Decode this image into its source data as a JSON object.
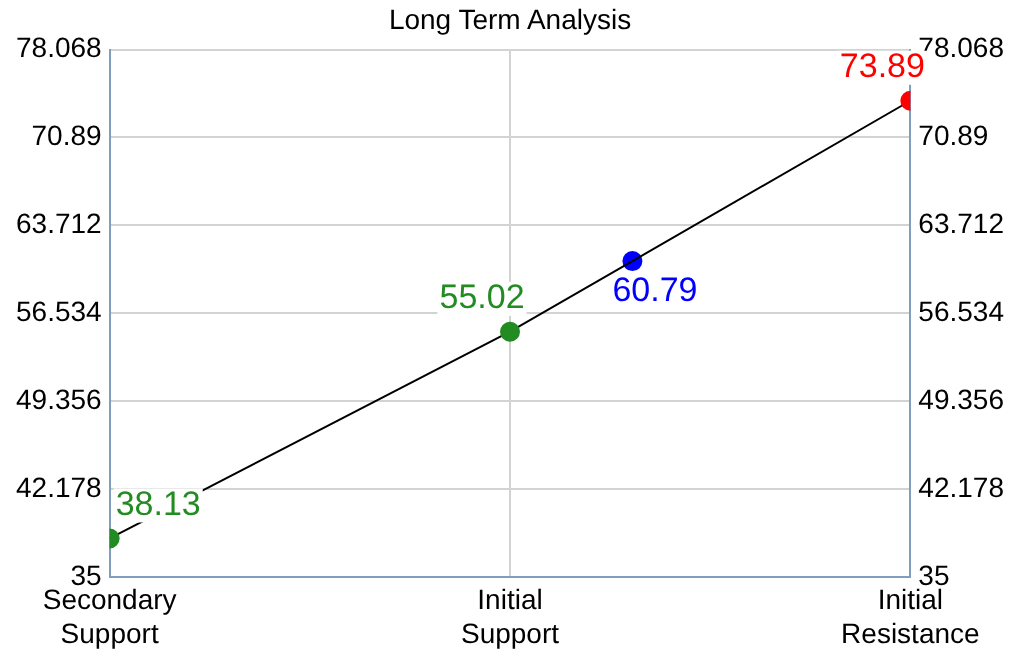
{
  "chart_data": {
    "type": "line",
    "title": "Long Term Analysis",
    "categories": [
      "Secondary Support",
      "Initial Support",
      "Initial Resistance"
    ],
    "series": [
      {
        "color": "#000000",
        "colors": [
          "#228b22",
          "#228b22",
          "#ff0000"
        ],
        "values": [
          38.13,
          55.02,
          73.89
        ]
      },
      {
        "type": "scatter",
        "color": "#0000ff",
        "values": [
          null,
          60.79,
          null
        ]
      }
    ],
    "ylim": [
      35,
      78.068
    ],
    "yticks": [
      35,
      42.178,
      49.356,
      56.534,
      63.712,
      70.89,
      78.068
    ],
    "y2lim": [
      35,
      78.068
    ],
    "y2ticks": [
      35,
      42.178,
      49.356,
      56.534,
      63.712,
      70.89,
      78.068
    ],
    "grid": true,
    "marker": "circle",
    "data_labels": true
  }
}
